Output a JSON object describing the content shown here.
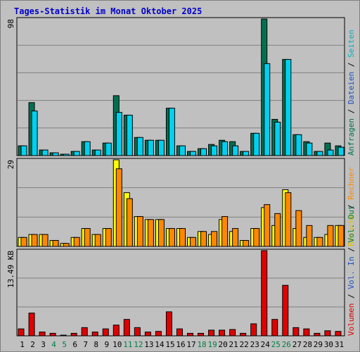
{
  "chart_data": {
    "type": "bar",
    "title": "Tages-Statistik im Monat Oktober 2025",
    "categories": [
      "1",
      "2",
      "3",
      "4",
      "5",
      "6",
      "7",
      "8",
      "9",
      "10",
      "11",
      "12",
      "13",
      "14",
      "15",
      "16",
      "17",
      "18",
      "19",
      "20",
      "21",
      "22",
      "23",
      "24",
      "25",
      "26",
      "27",
      "28",
      "29",
      "30",
      "31"
    ],
    "weekend_days": [
      "4",
      "5",
      "11",
      "12",
      "18",
      "19",
      "25",
      "26"
    ],
    "colors": {
      "title": "#0000cc",
      "weekday_label": "#000000",
      "weekend_label": "#008040",
      "grid": "#808080",
      "anfragen": "#007050",
      "dateien": "#00d0f0",
      "seiten": "#00b0c0",
      "besuche": "#ffff00",
      "rechner": "#ff8800",
      "vol_out": "#ff8800",
      "vol_in": "#2050c0",
      "volumen": "#e00000"
    },
    "panels": [
      {
        "name": "requests",
        "ymax_label": "98",
        "ymax": 98,
        "legend": [
          {
            "text": "Anfragen",
            "color": "#007050"
          },
          {
            "text": "Dateien",
            "color": "#2050c0"
          },
          {
            "text": "Seiten",
            "color": "#00b0c0"
          }
        ],
        "series": [
          {
            "key": "anfragen",
            "color": "#007050",
            "values": [
              7,
              38,
              4,
              2,
              1,
              3,
              10,
              4,
              9,
              43,
              29,
              13,
              11,
              11,
              34,
              7,
              3,
              5,
              8,
              11,
              10,
              3,
              16,
              98,
              26,
              69,
              15,
              10,
              3,
              9,
              7
            ]
          },
          {
            "key": "dateien",
            "color": "#00d0f0",
            "values": [
              7,
              32,
              4,
              2,
              1,
              3,
              10,
              4,
              9,
              31,
              29,
              13,
              11,
              11,
              34,
              7,
              3,
              5,
              7,
              10,
              7,
              3,
              16,
              66,
              24,
              69,
              15,
              9,
              3,
              4,
              6
            ]
          }
        ]
      },
      {
        "name": "visits",
        "ymax_label": "29",
        "ymax": 29,
        "legend": [
          {
            "text": "Besuche",
            "color": "#e0c000"
          },
          {
            "text": "Rechner",
            "color": "#ff8800"
          }
        ],
        "series": [
          {
            "key": "besuche",
            "color": "#ffff00",
            "values": [
              3,
              4,
              4,
              2,
              1,
              3,
              6,
              4,
              6,
              29,
              18,
              10,
              9,
              9,
              6,
              6,
              3,
              5,
              4,
              9,
              5,
              2,
              6,
              13,
              7,
              19,
              6,
              3,
              3,
              4,
              7
            ]
          },
          {
            "key": "rechner",
            "color": "#ff8800",
            "values": [
              3,
              4,
              4,
              2,
              1,
              3,
              6,
              4,
              6,
              26,
              16,
              10,
              9,
              9,
              6,
              6,
              3,
              5,
              5,
              10,
              6,
              2,
              6,
              14,
              11,
              18,
              12,
              7,
              3,
              7,
              7
            ]
          }
        ]
      },
      {
        "name": "volume",
        "ymax_label": "13.49 KB",
        "ymax": 13.49,
        "legend": [
          {
            "text": "Volumen",
            "color": "#e00000"
          },
          {
            "text": "Vol. In",
            "color": "#2050c0"
          },
          {
            "text": "Vol. Out",
            "color": "#008040"
          }
        ],
        "series": [
          {
            "key": "volumen",
            "color": "#e00000",
            "values": [
              1.1,
              3.6,
              0.6,
              0.4,
              0,
              0.4,
              1.3,
              0.6,
              1.1,
              1.7,
              2.6,
              1.3,
              0.6,
              0.7,
              3.8,
              1.1,
              0.4,
              0.4,
              0.9,
              0.9,
              1.0,
              0.4,
              1.9,
              13.49,
              2.6,
              8.0,
              1.3,
              1.1,
              0.4,
              0.8,
              0.7
            ]
          }
        ]
      }
    ]
  }
}
